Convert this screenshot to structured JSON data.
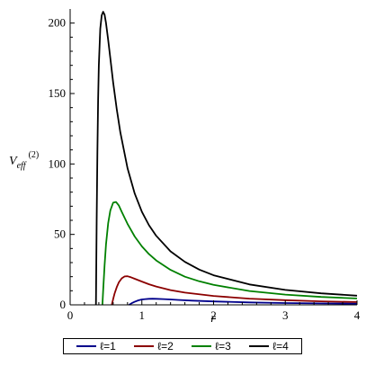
{
  "chart_data": {
    "type": "line",
    "title": "",
    "xlabel": "r",
    "ylabel": {
      "main": "V",
      "sub": "eff",
      "sup": "(2)"
    },
    "xlim": [
      0,
      4
    ],
    "ylim": [
      0,
      210
    ],
    "x_ticks": [
      "0",
      "1",
      "2",
      "3",
      "4"
    ],
    "y_ticks": [
      "0",
      "50",
      "100",
      "150",
      "200"
    ],
    "grid": false,
    "legend_position": "bottom",
    "series": [
      {
        "name": "ℓ=1",
        "color": "#00008B",
        "x": [
          0.82,
          0.86,
          0.9,
          0.95,
          1.0,
          1.05,
          1.1,
          1.15,
          1.2,
          1.3,
          1.4,
          1.5,
          1.7,
          2.0,
          2.5,
          3.0,
          3.5,
          4.0
        ],
        "y": [
          0.0,
          1.2,
          2.2,
          3.2,
          3.8,
          4.1,
          4.3,
          4.35,
          4.3,
          4.1,
          3.8,
          3.5,
          3.0,
          2.4,
          1.7,
          1.3,
          1.0,
          0.8
        ]
      },
      {
        "name": "ℓ=2",
        "color": "#8B0000",
        "x": [
          0.58,
          0.6,
          0.62,
          0.65,
          0.68,
          0.72,
          0.76,
          0.8,
          0.85,
          0.9,
          1.0,
          1.1,
          1.2,
          1.4,
          1.6,
          2.0,
          2.5,
          3.0,
          3.5,
          4.0
        ],
        "y": [
          0.0,
          4.0,
          8.0,
          12.5,
          16.0,
          18.8,
          20.2,
          20.3,
          19.5,
          18.5,
          16.5,
          14.6,
          13.0,
          10.5,
          8.7,
          6.3,
          4.4,
          3.3,
          2.5,
          2.0
        ]
      },
      {
        "name": "ℓ=3",
        "color": "#008000",
        "x": [
          0.45,
          0.46,
          0.48,
          0.5,
          0.53,
          0.56,
          0.6,
          0.64,
          0.68,
          0.72,
          0.8,
          0.9,
          1.0,
          1.1,
          1.2,
          1.4,
          1.6,
          1.8,
          2.0,
          2.5,
          3.0,
          3.5,
          4.0
        ],
        "y": [
          0.0,
          10.0,
          28.0,
          43.0,
          58.0,
          67.0,
          72.5,
          73.0,
          70.5,
          66.0,
          57.5,
          48.5,
          41.5,
          36.0,
          31.5,
          24.8,
          20.0,
          16.7,
          14.2,
          9.8,
          7.3,
          5.6,
          4.5
        ]
      },
      {
        "name": "ℓ=4",
        "color": "#000000",
        "x": [
          0.36,
          0.365,
          0.37,
          0.38,
          0.39,
          0.4,
          0.42,
          0.44,
          0.46,
          0.48,
          0.5,
          0.53,
          0.56,
          0.6,
          0.65,
          0.7,
          0.8,
          0.9,
          1.0,
          1.1,
          1.2,
          1.4,
          1.6,
          1.8,
          2.0,
          2.5,
          3.0,
          3.5,
          4.0
        ],
        "y": [
          0.0,
          30.0,
          60.0,
          108.0,
          145.0,
          170.0,
          196.0,
          205.5,
          208.0,
          206.0,
          200.0,
          188.0,
          175.0,
          158.0,
          139.0,
          122.5,
          97.0,
          79.0,
          66.0,
          56.5,
          49.0,
          38.0,
          30.5,
          25.0,
          21.0,
          14.5,
          10.6,
          8.2,
          6.5
        ]
      }
    ]
  }
}
